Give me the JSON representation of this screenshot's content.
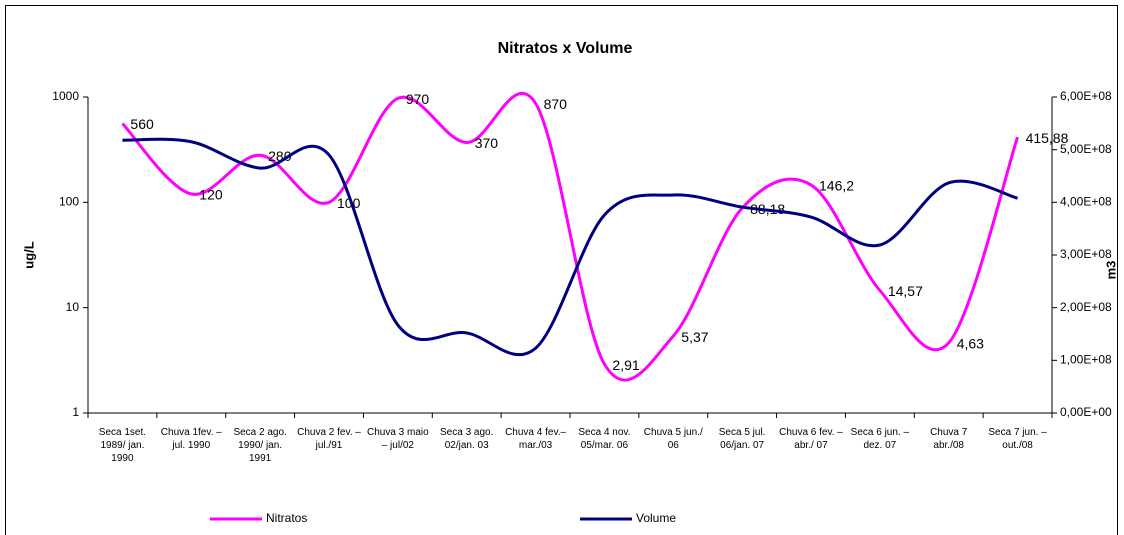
{
  "chart_data": {
    "type": "line",
    "title": "Nitratos x Volume",
    "y_label": "ug/L",
    "y2_label": "m3",
    "categories": [
      "Seca 1set. 1989/ jan. 1990",
      "Chuva 1fev. – jul. 1990",
      "Seca 2 ago. 1990/ jan. 1991",
      "Chuva 2 fev. – jul./91",
      "Chuva 3 maio – jul/02",
      "Seca 3 ago. 02/jan. 03",
      "Chuva 4 fev.– mar./03",
      "Seca 4 nov. 05/mar. 06",
      "Chuva 5 jun./ 06",
      "Seca 5 jul. 06/jan. 07",
      "Chuva 6 fev. – abr./ 07",
      "Seca 6 jun. – dez. 07",
      "Chuva 7 abr./08",
      "Seca 7 jun. – out./08"
    ],
    "series": [
      {
        "name": "Nitratos",
        "color": "#ff00ff",
        "values": [
          560,
          120,
          280,
          100,
          970,
          370,
          870,
          2.91,
          5.37,
          88.18,
          146.2,
          14.57,
          4.63,
          415.88
        ],
        "value_labels": [
          "560",
          "120",
          "280",
          "100",
          "970",
          "370",
          "870",
          "2,91",
          "5,37",
          "88,18",
          "146,2",
          "14,57",
          "4,63",
          "415,88"
        ]
      },
      {
        "name": "Volume",
        "color": "#000080",
        "axis": "y2",
        "values": [
          518000000,
          515000000,
          465000000,
          490000000,
          167000000,
          152000000,
          123000000,
          376000000,
          414000000,
          391000000,
          372000000,
          319000000,
          437000000,
          408000000
        ]
      }
    ],
    "ylim": [
      1,
      1000
    ],
    "yticks": [
      1,
      10,
      100,
      1000
    ],
    "ylog": true,
    "y2lim": [
      0,
      600000000
    ],
    "y2ticks": [
      {
        "value": 0,
        "label": "0,00E+00"
      },
      {
        "value": 100000000,
        "label": "1,00E+08"
      },
      {
        "value": 200000000,
        "label": "2,00E+08"
      },
      {
        "value": 300000000,
        "label": "3,00E+08"
      },
      {
        "value": 400000000,
        "label": "4,00E+08"
      },
      {
        "value": 500000000,
        "label": "5,00E+08"
      },
      {
        "value": 600000000,
        "label": "6,00E+08"
      }
    ],
    "grid": false,
    "legend": "bottom"
  }
}
